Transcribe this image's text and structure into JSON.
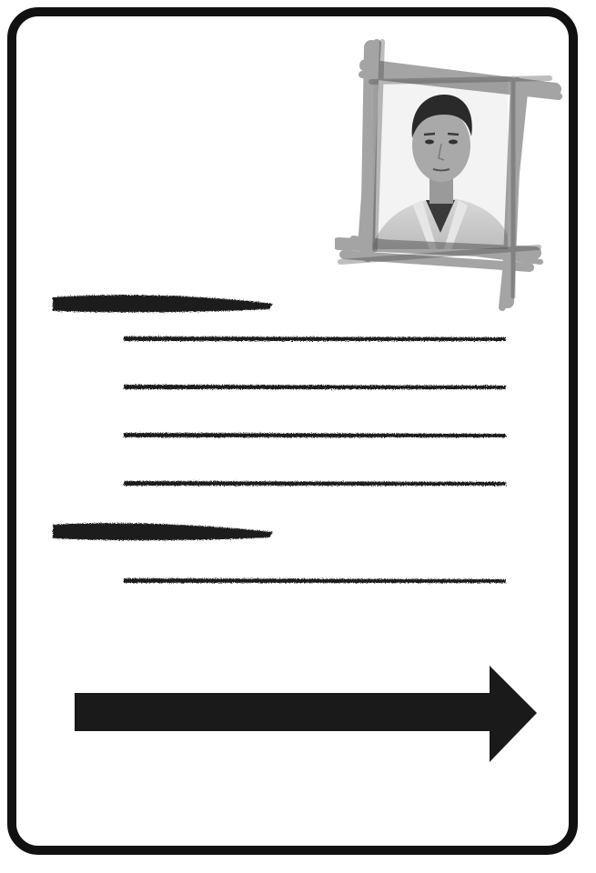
{
  "document": {
    "kind": "resume-card-icon",
    "photo": {
      "icon": "portrait-photo",
      "subject": "person",
      "frame_style": "brush-stroke-frame"
    },
    "sections": [
      {
        "heading": "heading-bar",
        "items": [
          "text-line",
          "text-line",
          "text-line",
          "text-line"
        ]
      },
      {
        "heading": "heading-bar",
        "items": [
          "text-line"
        ]
      }
    ],
    "next_icon": "arrow-right-icon"
  },
  "colors": {
    "border": "#111111",
    "ink": "#1a1a1a",
    "frame": "#6a6a6a",
    "background": "#ffffff"
  }
}
